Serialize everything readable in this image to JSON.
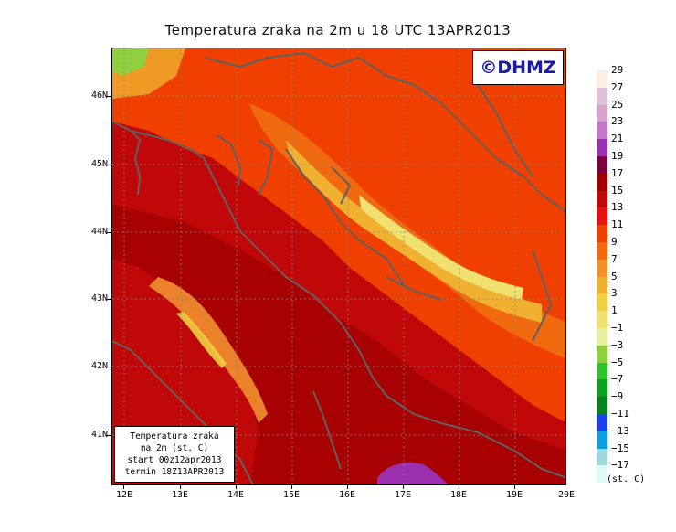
{
  "title": "Temperatura zraka na 2m u 18 UTC 13APR2013",
  "watermark": "©DHMZ",
  "infobox": {
    "line1": "Temperatura zraka",
    "line2": "na 2m (st. C)",
    "line3": "start 00z12apr2013",
    "line4": "termin 18Z13APR2013"
  },
  "axes": {
    "lat_labels": [
      "46N",
      "45N",
      "44N",
      "43N",
      "42N",
      "41N"
    ],
    "lon_labels": [
      "12E",
      "13E",
      "14E",
      "15E",
      "16E",
      "17E",
      "18E",
      "19E",
      "20E"
    ]
  },
  "legend": {
    "unit": "(st. C)",
    "labels": [
      "29",
      "27",
      "25",
      "23",
      "21",
      "19",
      "17",
      "15",
      "13",
      "11",
      "9",
      "7",
      "5",
      "3",
      "1",
      "-1",
      "-3",
      "-5",
      "-7",
      "-9",
      "-11",
      "-13",
      "-15",
      "-17"
    ],
    "colors": [
      "#fbeee0",
      "#dcc2d8",
      "#d9a0d0",
      "#c278c8",
      "#9a30b0",
      "#7a0040",
      "#a00000",
      "#c00808",
      "#e81010",
      "#f04000",
      "#f06a10",
      "#f29030",
      "#f0b030",
      "#f0d040",
      "#f0e070",
      "#e8f0a0",
      "#90d040",
      "#30c030",
      "#10a020",
      "#0a8020",
      "#2040f0",
      "#10a0e0",
      "#a0d8e0",
      "#e0f8f8"
    ]
  }
}
